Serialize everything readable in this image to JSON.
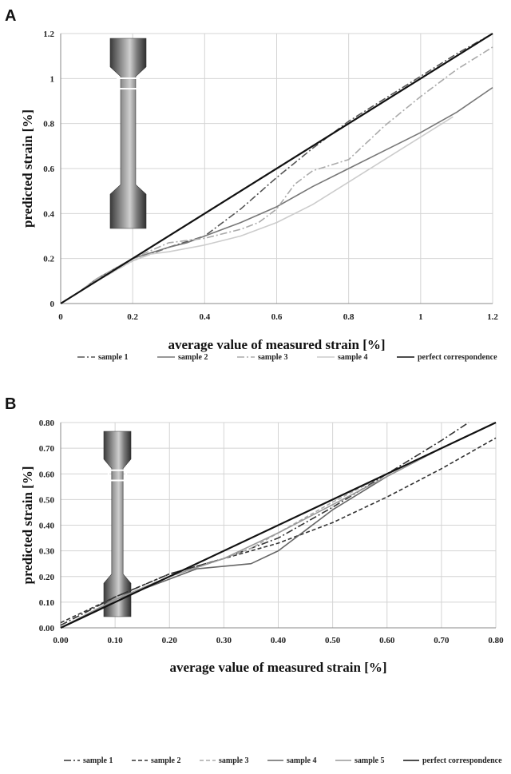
{
  "chart_data": [
    {
      "type": "line",
      "panel_label": "A",
      "xlabel": "average value of measured strain [%]",
      "ylabel": "predicted strain [%]",
      "xlim": [
        0,
        1.2
      ],
      "ylim": [
        0,
        1.2
      ],
      "xticks": [
        "0",
        "0.2",
        "0.4",
        "0.6",
        "0.8",
        "1",
        "1.2"
      ],
      "yticks": [
        "0",
        "0.2",
        "0.4",
        "0.6",
        "0.8",
        "1",
        "1.2"
      ],
      "grid": true,
      "legend_position": "bottom",
      "inset_image": "dog-bone-specimen",
      "series": [
        {
          "name": "sample 1",
          "color": "#555555",
          "dash": "dashdot",
          "points": [
            [
              0,
              0
            ],
            [
              0.05,
              0.05
            ],
            [
              0.1,
              0.1
            ],
            [
              0.2,
              0.19
            ],
            [
              0.3,
              0.25
            ],
            [
              0.4,
              0.3
            ],
            [
              0.5,
              0.42
            ],
            [
              0.6,
              0.56
            ],
            [
              0.7,
              0.69
            ],
            [
              0.8,
              0.81
            ],
            [
              0.9,
              0.91
            ],
            [
              1.0,
              1.01
            ],
            [
              1.1,
              1.11
            ],
            [
              1.2,
              1.2
            ]
          ]
        },
        {
          "name": "sample 2",
          "color": "#777777",
          "dash": "solid",
          "points": [
            [
              0,
              0
            ],
            [
              0.05,
              0.05
            ],
            [
              0.1,
              0.11
            ],
            [
              0.2,
              0.2
            ],
            [
              0.3,
              0.25
            ],
            [
              0.35,
              0.27
            ],
            [
              0.4,
              0.3
            ],
            [
              0.5,
              0.36
            ],
            [
              0.6,
              0.43
            ],
            [
              0.7,
              0.52
            ],
            [
              0.8,
              0.6
            ],
            [
              0.9,
              0.68
            ],
            [
              1.0,
              0.76
            ],
            [
              1.1,
              0.85
            ],
            [
              1.2,
              0.96
            ]
          ]
        },
        {
          "name": "sample 3",
          "color": "#aaaaaa",
          "dash": "dashdot",
          "points": [
            [
              0,
              0
            ],
            [
              0.05,
              0.05
            ],
            [
              0.1,
              0.11
            ],
            [
              0.2,
              0.2
            ],
            [
              0.3,
              0.27
            ],
            [
              0.4,
              0.29
            ],
            [
              0.5,
              0.33
            ],
            [
              0.55,
              0.36
            ],
            [
              0.6,
              0.42
            ],
            [
              0.65,
              0.53
            ],
            [
              0.7,
              0.59
            ],
            [
              0.8,
              0.64
            ],
            [
              0.9,
              0.79
            ],
            [
              1.0,
              0.92
            ],
            [
              1.1,
              1.04
            ],
            [
              1.2,
              1.14
            ]
          ]
        },
        {
          "name": "sample 4",
          "color": "#cccccc",
          "dash": "solid",
          "points": [
            [
              0,
              0
            ],
            [
              0.05,
              0.05
            ],
            [
              0.1,
              0.1
            ],
            [
              0.2,
              0.19
            ],
            [
              0.25,
              0.22
            ],
            [
              0.3,
              0.23
            ],
            [
              0.4,
              0.26
            ],
            [
              0.5,
              0.3
            ],
            [
              0.6,
              0.36
            ],
            [
              0.7,
              0.44
            ],
            [
              0.8,
              0.54
            ],
            [
              0.9,
              0.64
            ],
            [
              1.0,
              0.74
            ],
            [
              1.09,
              0.83
            ]
          ]
        },
        {
          "name": "perfect correspondence",
          "color": "#111111",
          "dash": "solid",
          "points": [
            [
              0,
              0
            ],
            [
              1.2,
              1.2
            ]
          ]
        }
      ]
    },
    {
      "type": "line",
      "panel_label": "B",
      "xlabel": "average value of measured strain [%]",
      "ylabel": "predicted strain [%]",
      "xlim": [
        0,
        0.8
      ],
      "ylim": [
        0,
        0.8
      ],
      "xticks": [
        "0.00",
        "0.10",
        "0.20",
        "0.30",
        "0.40",
        "0.50",
        "0.60",
        "0.70",
        "0.80"
      ],
      "yticks": [
        "0.00",
        "0.10",
        "0.20",
        "0.30",
        "0.40",
        "0.50",
        "0.60",
        "0.70",
        "0.80"
      ],
      "grid": true,
      "legend_position": "bottom",
      "inset_image": "dog-bone-specimen",
      "series": [
        {
          "name": "sample 1",
          "color": "#333333",
          "dash": "dashdot",
          "points": [
            [
              0,
              0.01
            ],
            [
              0.1,
              0.12
            ],
            [
              0.2,
              0.21
            ],
            [
              0.3,
              0.27
            ],
            [
              0.4,
              0.35
            ],
            [
              0.5,
              0.47
            ],
            [
              0.6,
              0.6
            ],
            [
              0.7,
              0.73
            ],
            [
              0.75,
              0.8
            ]
          ]
        },
        {
          "name": "sample 2",
          "color": "#333333",
          "dash": "dashed",
          "points": [
            [
              0,
              0.02
            ],
            [
              0.1,
              0.12
            ],
            [
              0.2,
              0.21
            ],
            [
              0.3,
              0.27
            ],
            [
              0.4,
              0.33
            ],
            [
              0.5,
              0.41
            ],
            [
              0.6,
              0.51
            ],
            [
              0.7,
              0.62
            ],
            [
              0.8,
              0.74
            ]
          ]
        },
        {
          "name": "sample 3",
          "color": "#aaaaaa",
          "dash": "dashed",
          "points": [
            [
              0,
              0
            ],
            [
              0.1,
              0.11
            ],
            [
              0.2,
              0.2
            ],
            [
              0.3,
              0.27
            ],
            [
              0.35,
              0.31
            ],
            [
              0.4,
              0.37
            ],
            [
              0.5,
              0.49
            ],
            [
              0.6,
              0.6
            ],
            [
              0.7,
              0.7
            ],
            [
              0.8,
              0.8
            ]
          ]
        },
        {
          "name": "sample 4",
          "color": "#666666",
          "dash": "solid",
          "points": [
            [
              0,
              0
            ],
            [
              0.05,
              0.05
            ],
            [
              0.1,
              0.11
            ],
            [
              0.2,
              0.19
            ],
            [
              0.25,
              0.23
            ],
            [
              0.3,
              0.24
            ],
            [
              0.35,
              0.25
            ],
            [
              0.4,
              0.3
            ],
            [
              0.45,
              0.38
            ],
            [
              0.5,
              0.46
            ],
            [
              0.6,
              0.59
            ],
            [
              0.7,
              0.7
            ],
            [
              0.8,
              0.8
            ]
          ]
        },
        {
          "name": "sample 5",
          "color": "#999999",
          "dash": "solid",
          "points": [
            [
              0,
              0
            ],
            [
              0.1,
              0.11
            ],
            [
              0.2,
              0.2
            ],
            [
              0.3,
              0.27
            ],
            [
              0.4,
              0.37
            ],
            [
              0.5,
              0.48
            ],
            [
              0.6,
              0.59
            ],
            [
              0.7,
              0.7
            ],
            [
              0.8,
              0.8
            ]
          ]
        },
        {
          "name": "perfect correspondence",
          "color": "#111111",
          "dash": "solid",
          "points": [
            [
              0,
              0
            ],
            [
              0.8,
              0.8
            ]
          ]
        }
      ]
    }
  ]
}
